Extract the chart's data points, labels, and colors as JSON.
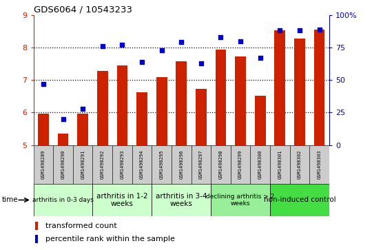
{
  "title": "GDS6064 / 10543233",
  "samples": [
    "GSM1498289",
    "GSM1498290",
    "GSM1498291",
    "GSM1498292",
    "GSM1498293",
    "GSM1498294",
    "GSM1498295",
    "GSM1498296",
    "GSM1498297",
    "GSM1498298",
    "GSM1498299",
    "GSM1498300",
    "GSM1498301",
    "GSM1498302",
    "GSM1498303"
  ],
  "bar_values": [
    5.97,
    5.35,
    5.97,
    7.28,
    7.45,
    6.62,
    7.08,
    7.57,
    6.72,
    7.93,
    7.72,
    6.52,
    8.53,
    8.28,
    8.55
  ],
  "scatter_pct": [
    47,
    20,
    28,
    76,
    77,
    64,
    73,
    79,
    63,
    83,
    80,
    67,
    88,
    88,
    89
  ],
  "ylim_left": [
    5,
    9
  ],
  "ylim_right": [
    0,
    100
  ],
  "yticks_left": [
    5,
    6,
    7,
    8,
    9
  ],
  "yticks_right": [
    0,
    25,
    50,
    75,
    100
  ],
  "ytick_labels_right": [
    "0",
    "25",
    "50",
    "75",
    "100%"
  ],
  "bar_color": "#cc2200",
  "scatter_color": "#0000cc",
  "grid_lines": [
    6,
    7,
    8
  ],
  "groups": [
    {
      "label": "arthritis in 0-3 days",
      "start": 0,
      "end": 3,
      "color": "#ccffcc",
      "fontsize": 6.5
    },
    {
      "label": "arthritis in 1-2\nweeks",
      "start": 3,
      "end": 6,
      "color": "#ccffcc",
      "fontsize": 7.5
    },
    {
      "label": "arthritis in 3-4\nweeks",
      "start": 6,
      "end": 9,
      "color": "#ccffcc",
      "fontsize": 7.5
    },
    {
      "label": "declining arthritis > 2\nweeks",
      "start": 9,
      "end": 12,
      "color": "#99ee99",
      "fontsize": 6.5
    },
    {
      "label": "non-induced control",
      "start": 12,
      "end": 15,
      "color": "#44dd44",
      "fontsize": 7.5
    }
  ],
  "legend_bar_label": "transformed count",
  "legend_scatter_label": "percentile rank within the sample",
  "time_label": "time",
  "sample_box_color": "#cccccc",
  "background_color": "#ffffff"
}
